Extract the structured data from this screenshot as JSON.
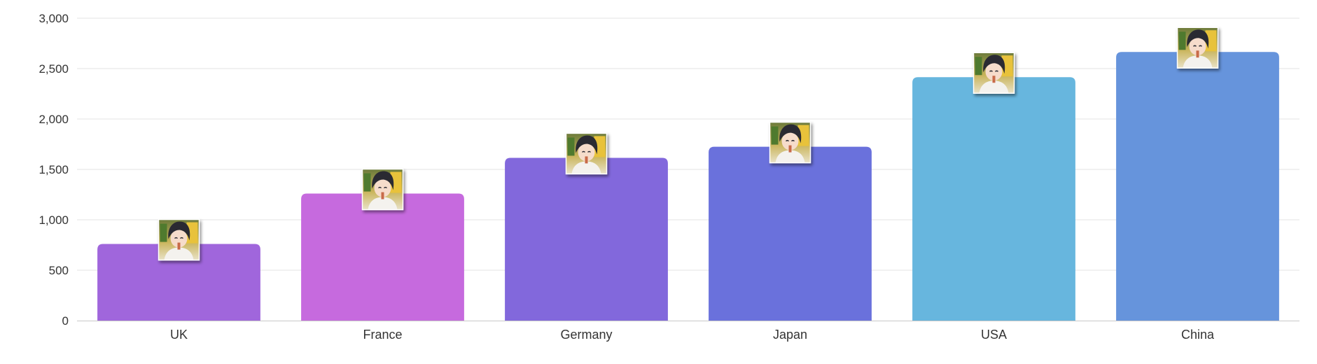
{
  "chart_data": {
    "type": "bar",
    "title": "",
    "xlabel": "",
    "ylabel": "",
    "categories": [
      "UK",
      "France",
      "Germany",
      "Japan",
      "USA",
      "China"
    ],
    "values": [
      760,
      1260,
      1615,
      1725,
      2415,
      2665
    ],
    "colors": [
      "#a066dc",
      "#c66ade",
      "#8268dc",
      "#6a71dc",
      "#67b6de",
      "#6694dc"
    ],
    "ylim": [
      0,
      3000
    ],
    "yticks": [
      0,
      500,
      1000,
      1500,
      2000,
      2500,
      3000
    ],
    "ytick_labels": [
      "0",
      "500",
      "1,000",
      "1,500",
      "2,000",
      "2,500",
      "3,000"
    ],
    "grid": true,
    "legend": "none",
    "bullet_icon": "anime-character-portrait-icon"
  }
}
